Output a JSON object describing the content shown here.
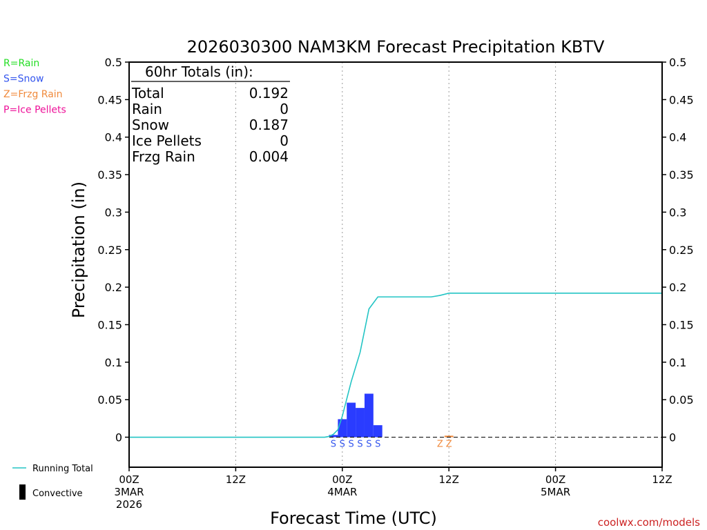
{
  "chart_data": {
    "type": "bar",
    "title": "2026030300 NAM3KM Forecast Precipitation KBTV",
    "xlabel": "Forecast Time (UTC)",
    "ylabel": "Precipitation (in)",
    "ylim": [
      -0.04,
      0.5
    ],
    "xlim_hours": [
      0,
      60
    ],
    "yticks": [
      "0",
      "0.05",
      "0.1",
      "0.15",
      "0.2",
      "0.25",
      "0.3",
      "0.35",
      "0.4",
      "0.45",
      "0.5"
    ],
    "ytick_values": [
      0,
      0.05,
      0.1,
      0.15,
      0.2,
      0.25,
      0.3,
      0.35,
      0.4,
      0.45,
      0.5
    ],
    "xticks": [
      {
        "hour": 0,
        "lines": [
          "00Z",
          "3MAR",
          "2026"
        ]
      },
      {
        "hour": 12,
        "lines": [
          "12Z"
        ]
      },
      {
        "hour": 24,
        "lines": [
          "00Z",
          "4MAR"
        ]
      },
      {
        "hour": 36,
        "lines": [
          "12Z"
        ]
      },
      {
        "hour": 48,
        "lines": [
          "00Z",
          "5MAR"
        ]
      },
      {
        "hour": 60,
        "lines": [
          "12Z"
        ]
      }
    ],
    "bars": [
      {
        "hour": 23,
        "value": 0.003,
        "color": "#2a3cff"
      },
      {
        "hour": 24,
        "value": 0.024,
        "color": "#2a3cff"
      },
      {
        "hour": 25,
        "value": 0.046,
        "color": "#2a3cff"
      },
      {
        "hour": 26,
        "value": 0.039,
        "color": "#2a3cff"
      },
      {
        "hour": 27,
        "value": 0.058,
        "color": "#2a3cff"
      },
      {
        "hour": 28,
        "value": 0.016,
        "color": "#2a3cff"
      },
      {
        "hour": 36,
        "value": 0.002,
        "color": "#f08a3c"
      }
    ],
    "ptype_markers": [
      {
        "hour": 23,
        "label": "S",
        "color": "#3355ee"
      },
      {
        "hour": 24,
        "label": "S",
        "color": "#3355ee"
      },
      {
        "hour": 25,
        "label": "S",
        "color": "#3355ee"
      },
      {
        "hour": 26,
        "label": "S",
        "color": "#3355ee"
      },
      {
        "hour": 27,
        "label": "S",
        "color": "#3355ee"
      },
      {
        "hour": 28,
        "label": "S",
        "color": "#3355ee"
      },
      {
        "hour": 35,
        "label": "Z",
        "color": "#f08a3c"
      },
      {
        "hour": 36,
        "label": "Z",
        "color": "#f08a3c"
      }
    ],
    "running_total": {
      "name": "Running Total",
      "color": "#22c4c4",
      "x": [
        0,
        22,
        22.5,
        23,
        23.5,
        24,
        25,
        26,
        27,
        28,
        29,
        31,
        33,
        34,
        35,
        36,
        40,
        44,
        48,
        52,
        56,
        60
      ],
      "y": [
        0,
        0,
        0.001,
        0.004,
        0.01,
        0.028,
        0.074,
        0.113,
        0.171,
        0.187,
        0.187,
        0.187,
        0.187,
        0.187,
        0.189,
        0.192,
        0.192,
        0.192,
        0.192,
        0.192,
        0.192,
        0.192
      ]
    },
    "totals_box": {
      "heading": "60hr Totals (in):",
      "rows": [
        {
          "label": "Total",
          "value": "0.192"
        },
        {
          "label": "Rain",
          "value": "0"
        },
        {
          "label": "Snow",
          "value": "0.187"
        },
        {
          "label": "Ice Pellets",
          "value": "0"
        },
        {
          "label": "Frzg Rain",
          "value": "0.004"
        }
      ]
    },
    "ptype_legend": [
      {
        "text": "R=Rain",
        "color": "#22dd22"
      },
      {
        "text": "S=Snow",
        "color": "#3355ee"
      },
      {
        "text": "Z=Frzg Rain",
        "color": "#f08a3c"
      },
      {
        "text": "P=Ice Pellets",
        "color": "#ee1199"
      }
    ],
    "series_legend": [
      {
        "text": "Running Total",
        "kind": "line",
        "color": "#22c4c4"
      },
      {
        "text": "Convective",
        "kind": "bar",
        "color": "#000000"
      }
    ],
    "credit": "coolwx.com/models",
    "credit_color": "#cc2222",
    "grid": "vertical dotted at 12-hour ticks"
  }
}
